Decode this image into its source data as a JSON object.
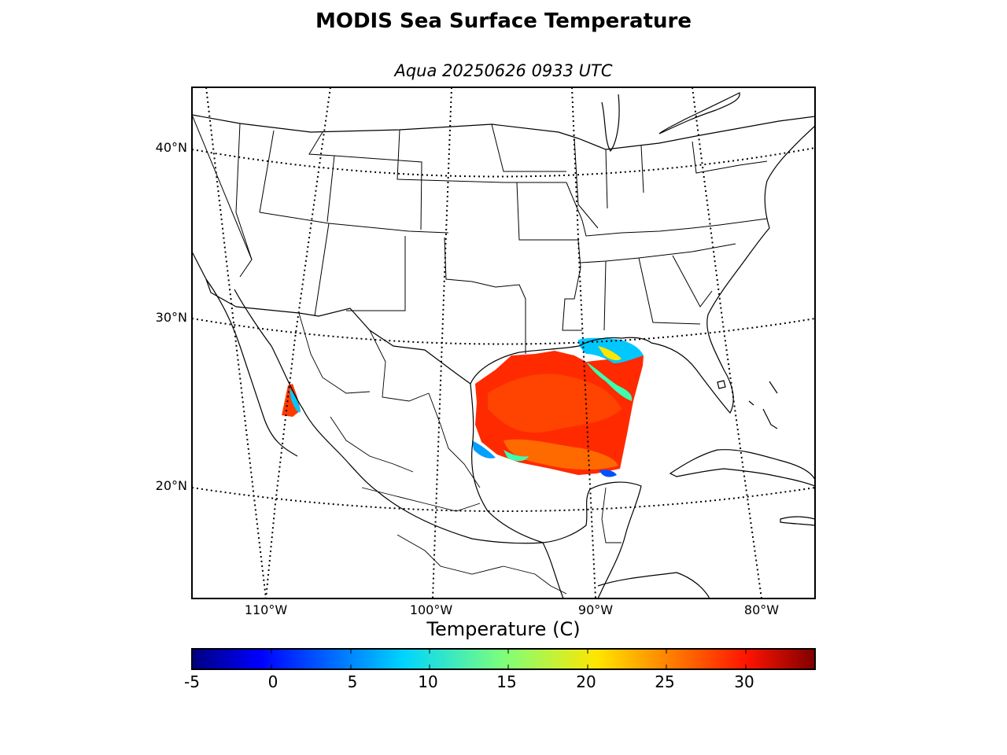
{
  "title": "MODIS Sea Surface Temperature",
  "subtitle": "Aqua 20250626 0933 UTC",
  "map": {
    "lat_labels": [
      "40°N",
      "30°N",
      "20°N"
    ],
    "lon_labels": [
      "110°W",
      "100°W",
      "90°W",
      "80°W"
    ],
    "land_color": "#ffffff",
    "coastline_color": "#000000",
    "graticule_style": "dotted"
  },
  "colorbar": {
    "label": "Temperature (C)",
    "colormap": "jet",
    "min": -5,
    "max": 34,
    "ticks": [
      "-5",
      "0",
      "5",
      "10",
      "15",
      "20",
      "25",
      "30"
    ],
    "orientation": "horizontal"
  },
  "sst_field": {
    "dominant_range_c": [
      27,
      31
    ],
    "region": "Gulf of Mexico swath",
    "colors": {
      "hot": "#ff2a00",
      "warm": "#ff6a00",
      "cool": "#3cffb0",
      "cold": "#0050ff"
    }
  }
}
